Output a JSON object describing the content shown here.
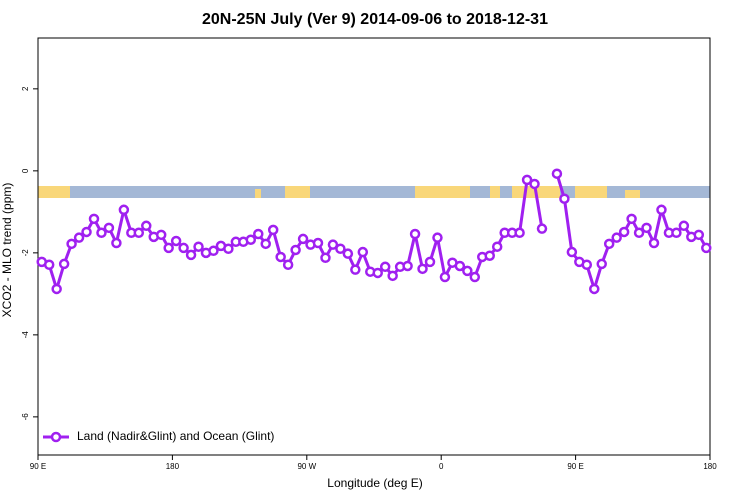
{
  "chart_data": {
    "type": "line",
    "title": "20N-25N July (Ver 9)   2014-09-06 to 2018-12-31",
    "xlabel": "Longitude (deg E)",
    "ylabel": "XCO2 - MLO trend (ppm)",
    "x": [
      92.5,
      97.5,
      102.5,
      107.5,
      112.5,
      117.5,
      122.5,
      127.5,
      132.5,
      137.5,
      142.5,
      147.5,
      152.5,
      157.5,
      162.5,
      167.5,
      172.5,
      177.5,
      182.5,
      187.5,
      192.5,
      197.5,
      202.5,
      207.5,
      212.5,
      217.5,
      222.5,
      227.5,
      232.5,
      237.5,
      242.5,
      247.5,
      252.5,
      257.5,
      262.5,
      267.5,
      272.5,
      277.5,
      282.5,
      287.5,
      292.5,
      297.5,
      302.5,
      307.5,
      312.5,
      317.5,
      322.5,
      327.5,
      332.5,
      337.5,
      342.5,
      347.5,
      352.5,
      357.5,
      362.5,
      367.5,
      372.5,
      377.5,
      382.5,
      387.5,
      392.5,
      397.5,
      402.5,
      407.5,
      412.5,
      417.5,
      422.5,
      427.5,
      432.5,
      437.5,
      442.5,
      447.5,
      452.5,
      457.5,
      462.5,
      467.5,
      472.5,
      477.5,
      482.5,
      487.5,
      492.5,
      497.5,
      502.5,
      507.5,
      512.5,
      517.5,
      522.5,
      527.5,
      532.5,
      537.5
    ],
    "series": [
      {
        "name": "Land (Nadir&Glint) and Ocean (Glint)",
        "color": "#a020f0",
        "values": [
          -2.22,
          -2.29,
          -2.88,
          -2.27,
          -1.78,
          -1.63,
          -1.49,
          -1.17,
          -1.51,
          -1.39,
          -1.76,
          -0.95,
          -1.51,
          -1.51,
          -1.34,
          -1.61,
          -1.56,
          -1.88,
          -1.71,
          -1.88,
          -2.05,
          -1.85,
          -2.0,
          -1.95,
          -1.83,
          -1.9,
          -1.73,
          -1.73,
          -1.68,
          -1.54,
          -1.78,
          -1.44,
          -2.1,
          -2.29,
          -1.93,
          -1.66,
          -1.8,
          -1.76,
          -2.12,
          -1.8,
          -1.9,
          -2.02,
          -2.41,
          -1.98,
          -2.46,
          -2.49,
          -2.34,
          -2.56,
          -2.34,
          -2.32,
          -1.54,
          -2.39,
          -2.22,
          -1.63,
          -2.59,
          -2.24,
          -2.32,
          -2.44,
          -2.59,
          -2.1,
          -2.07,
          -1.85,
          -1.51,
          -1.51,
          -1.51,
          -0.22,
          -0.32,
          -1.41,
          null,
          -0.07,
          -0.68,
          -1.98,
          -2.22,
          -2.29,
          -2.88,
          -2.27,
          -1.78,
          -1.63,
          -1.49,
          -1.17,
          -1.51,
          -1.39,
          -1.76,
          -0.95,
          -1.51,
          -1.51,
          -1.34,
          -1.61,
          -1.56,
          -1.88
        ]
      }
    ],
    "xlim": [
      90,
      540
    ],
    "xticks": [
      {
        "value": 90,
        "label": "90 E"
      },
      180,
      {
        "value": 270,
        "label": "90 W"
      },
      {
        "value": 360,
        "label": "0"
      },
      {
        "value": 450,
        "label": "90 E"
      },
      {
        "value": 540,
        "label": "180"
      }
    ],
    "ylim": [
      -6.93,
      3.24
    ],
    "yticks": [
      -6,
      -4,
      -2,
      0,
      2
    ],
    "legend": "bottomleft"
  }
}
